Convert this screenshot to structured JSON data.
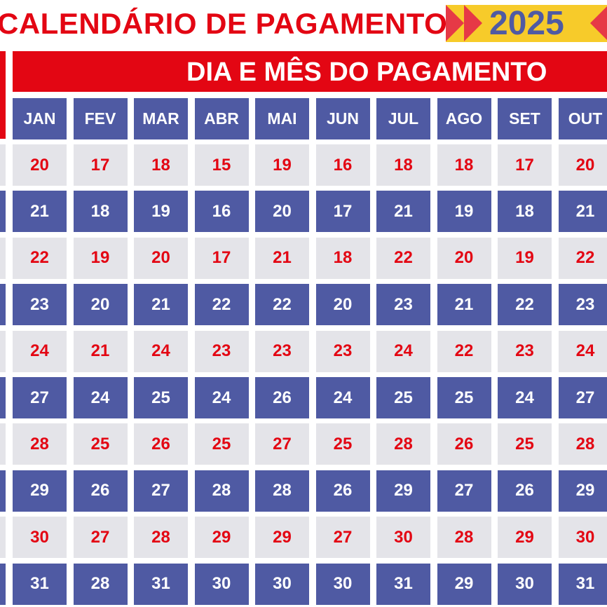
{
  "title": "CALENDÁRIO DE PAGAMENTO",
  "year": "2025",
  "band_label": "DIA E MÊS DO PAGAMENTO",
  "colors": {
    "red": "#e30613",
    "blue": "#4f5aa3",
    "gray": "#e4e4e9",
    "yellow": "#f7cb2a"
  },
  "months": [
    "JAN",
    "FEV",
    "MAR",
    "ABR",
    "MAI",
    "JUN",
    "JUL",
    "AGO",
    "SET",
    "OUT"
  ],
  "rows": [
    [
      "20",
      "17",
      "18",
      "15",
      "19",
      "16",
      "18",
      "18",
      "17",
      "20"
    ],
    [
      "21",
      "18",
      "19",
      "16",
      "20",
      "17",
      "21",
      "19",
      "18",
      "21"
    ],
    [
      "22",
      "19",
      "20",
      "17",
      "21",
      "18",
      "22",
      "20",
      "19",
      "22"
    ],
    [
      "23",
      "20",
      "21",
      "22",
      "22",
      "20",
      "23",
      "21",
      "22",
      "23"
    ],
    [
      "24",
      "21",
      "24",
      "23",
      "23",
      "23",
      "24",
      "22",
      "23",
      "24"
    ],
    [
      "27",
      "24",
      "25",
      "24",
      "26",
      "24",
      "25",
      "25",
      "24",
      "27"
    ],
    [
      "28",
      "25",
      "26",
      "25",
      "27",
      "25",
      "28",
      "26",
      "25",
      "28"
    ],
    [
      "29",
      "26",
      "27",
      "28",
      "28",
      "26",
      "29",
      "27",
      "26",
      "29"
    ],
    [
      "30",
      "27",
      "28",
      "29",
      "29",
      "27",
      "30",
      "28",
      "29",
      "30"
    ],
    [
      "31",
      "28",
      "31",
      "30",
      "30",
      "30",
      "31",
      "29",
      "30",
      "31"
    ]
  ]
}
